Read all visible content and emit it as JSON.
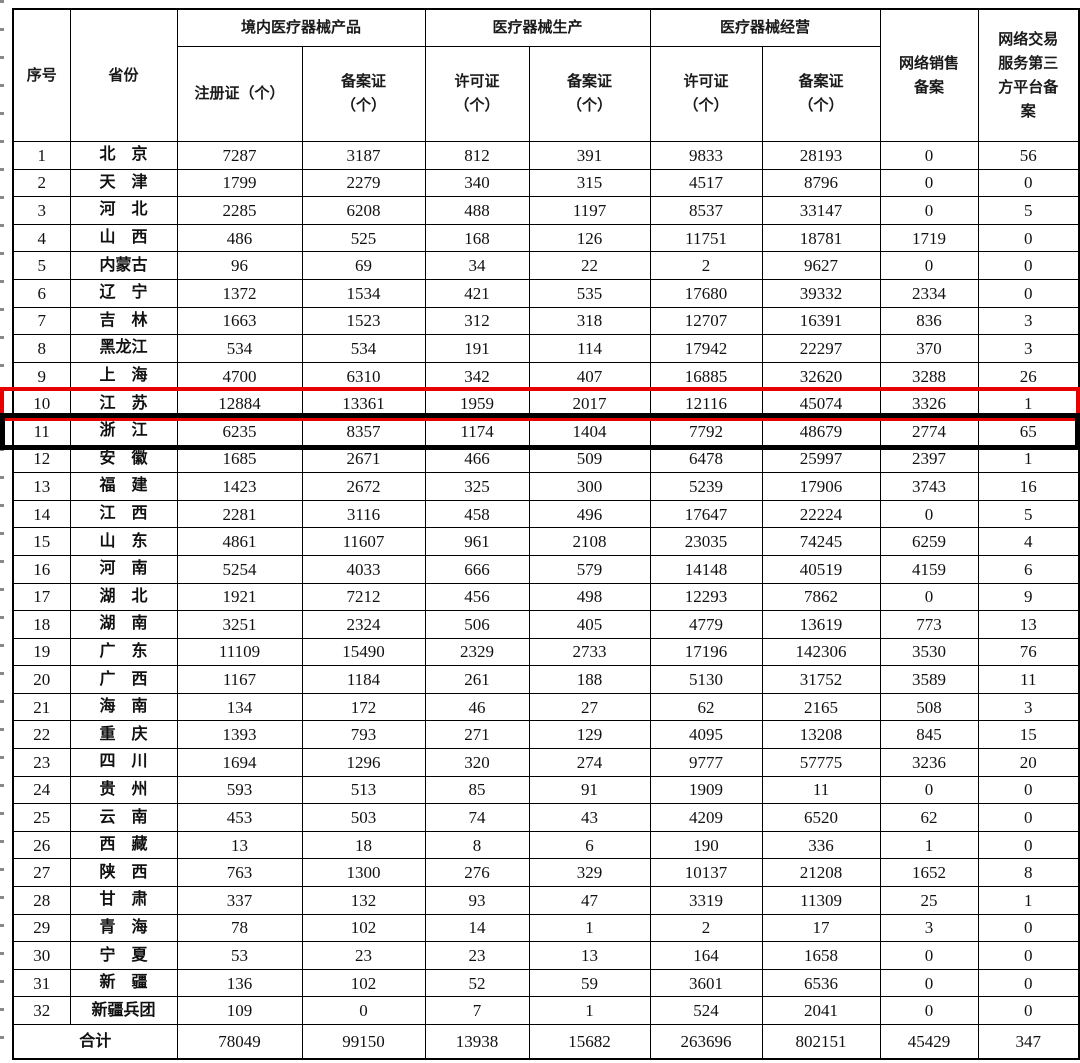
{
  "table": {
    "groups": {
      "domestic_products": "境内医疗器械产品",
      "production": "医疗器械生产",
      "operation": "医疗器械经营"
    },
    "columns": {
      "index": "序号",
      "province": "省份",
      "registration": "注册证（个）",
      "filing_product": "备案证\n（个）",
      "license_production": "许可证\n（个）",
      "filing_production": "备案证\n（个）",
      "license_operation": "许可证\n（个）",
      "filing_operation": "备案证\n（个）",
      "online_sales": "网络销售\n备案",
      "platform": "网络交易\n服务第三\n方平台备\n案"
    },
    "rows": [
      {
        "no": "1",
        "province": "北　京",
        "values": [
          "7287",
          "3187",
          "812",
          "391",
          "9833",
          "28193",
          "0",
          "56"
        ]
      },
      {
        "no": "2",
        "province": "天　津",
        "values": [
          "1799",
          "2279",
          "340",
          "315",
          "4517",
          "8796",
          "0",
          "0"
        ]
      },
      {
        "no": "3",
        "province": "河　北",
        "values": [
          "2285",
          "6208",
          "488",
          "1197",
          "8537",
          "33147",
          "0",
          "5"
        ]
      },
      {
        "no": "4",
        "province": "山　西",
        "values": [
          "486",
          "525",
          "168",
          "126",
          "11751",
          "18781",
          "1719",
          "0"
        ]
      },
      {
        "no": "5",
        "province": "内蒙古",
        "values": [
          "96",
          "69",
          "34",
          "22",
          "2",
          "9627",
          "0",
          "0"
        ]
      },
      {
        "no": "6",
        "province": "辽　宁",
        "values": [
          "1372",
          "1534",
          "421",
          "535",
          "17680",
          "39332",
          "2334",
          "0"
        ]
      },
      {
        "no": "7",
        "province": "吉　林",
        "values": [
          "1663",
          "1523",
          "312",
          "318",
          "12707",
          "16391",
          "836",
          "3"
        ]
      },
      {
        "no": "8",
        "province": "黑龙江",
        "values": [
          "534",
          "534",
          "191",
          "114",
          "17942",
          "22297",
          "370",
          "3"
        ]
      },
      {
        "no": "9",
        "province": "上　海",
        "values": [
          "4700",
          "6310",
          "342",
          "407",
          "16885",
          "32620",
          "3288",
          "26"
        ]
      },
      {
        "no": "10",
        "province": "江　苏",
        "values": [
          "12884",
          "13361",
          "1959",
          "2017",
          "12116",
          "45074",
          "3326",
          "1"
        ]
      },
      {
        "no": "11",
        "province": "浙　江",
        "values": [
          "6235",
          "8357",
          "1174",
          "1404",
          "7792",
          "48679",
          "2774",
          "65"
        ]
      },
      {
        "no": "12",
        "province": "安　徽",
        "values": [
          "1685",
          "2671",
          "466",
          "509",
          "6478",
          "25997",
          "2397",
          "1"
        ]
      },
      {
        "no": "13",
        "province": "福　建",
        "values": [
          "1423",
          "2672",
          "325",
          "300",
          "5239",
          "17906",
          "3743",
          "16"
        ]
      },
      {
        "no": "14",
        "province": "江　西",
        "values": [
          "2281",
          "3116",
          "458",
          "496",
          "17647",
          "22224",
          "0",
          "5"
        ]
      },
      {
        "no": "15",
        "province": "山　东",
        "values": [
          "4861",
          "11607",
          "961",
          "2108",
          "23035",
          "74245",
          "6259",
          "4"
        ]
      },
      {
        "no": "16",
        "province": "河　南",
        "values": [
          "5254",
          "4033",
          "666",
          "579",
          "14148",
          "40519",
          "4159",
          "6"
        ]
      },
      {
        "no": "17",
        "province": "湖　北",
        "values": [
          "1921",
          "7212",
          "456",
          "498",
          "12293",
          "7862",
          "0",
          "9"
        ]
      },
      {
        "no": "18",
        "province": "湖　南",
        "values": [
          "3251",
          "2324",
          "506",
          "405",
          "4779",
          "13619",
          "773",
          "13"
        ]
      },
      {
        "no": "19",
        "province": "广　东",
        "values": [
          "11109",
          "15490",
          "2329",
          "2733",
          "17196",
          "142306",
          "3530",
          "76"
        ]
      },
      {
        "no": "20",
        "province": "广　西",
        "values": [
          "1167",
          "1184",
          "261",
          "188",
          "5130",
          "31752",
          "3589",
          "11"
        ]
      },
      {
        "no": "21",
        "province": "海　南",
        "values": [
          "134",
          "172",
          "46",
          "27",
          "62",
          "2165",
          "508",
          "3"
        ]
      },
      {
        "no": "22",
        "province": "重　庆",
        "values": [
          "1393",
          "793",
          "271",
          "129",
          "4095",
          "13208",
          "845",
          "15"
        ]
      },
      {
        "no": "23",
        "province": "四　川",
        "values": [
          "1694",
          "1296",
          "320",
          "274",
          "9777",
          "57775",
          "3236",
          "20"
        ]
      },
      {
        "no": "24",
        "province": "贵　州",
        "values": [
          "593",
          "513",
          "85",
          "91",
          "1909",
          "11",
          "0",
          "0"
        ]
      },
      {
        "no": "25",
        "province": "云　南",
        "values": [
          "453",
          "503",
          "74",
          "43",
          "4209",
          "6520",
          "62",
          "0"
        ]
      },
      {
        "no": "26",
        "province": "西　藏",
        "values": [
          "13",
          "18",
          "8",
          "6",
          "190",
          "336",
          "1",
          "0"
        ]
      },
      {
        "no": "27",
        "province": "陕　西",
        "values": [
          "763",
          "1300",
          "276",
          "329",
          "10137",
          "21208",
          "1652",
          "8"
        ]
      },
      {
        "no": "28",
        "province": "甘　肃",
        "values": [
          "337",
          "132",
          "93",
          "47",
          "3319",
          "11309",
          "25",
          "1"
        ]
      },
      {
        "no": "29",
        "province": "青　海",
        "values": [
          "78",
          "102",
          "14",
          "1",
          "2",
          "17",
          "3",
          "0"
        ]
      },
      {
        "no": "30",
        "province": "宁　夏",
        "values": [
          "53",
          "23",
          "23",
          "13",
          "164",
          "1658",
          "0",
          "0"
        ]
      },
      {
        "no": "31",
        "province": "新　疆",
        "values": [
          "136",
          "102",
          "52",
          "59",
          "3601",
          "6536",
          "0",
          "0"
        ]
      },
      {
        "no": "32",
        "province": "新疆兵团",
        "values": [
          "109",
          "0",
          "7",
          "1",
          "524",
          "2041",
          "0",
          "0"
        ]
      }
    ],
    "total": {
      "label": "合计",
      "values": [
        "78049",
        "99150",
        "13938",
        "15682",
        "263696",
        "802151",
        "45429",
        "347"
      ]
    },
    "highlights": [
      {
        "row_no": "10",
        "color": "#e60000",
        "thickness": 4,
        "name": "highlight-box-red"
      },
      {
        "row_no": "11",
        "color": "#000000",
        "thickness": 5,
        "name": "highlight-box-black"
      }
    ]
  }
}
